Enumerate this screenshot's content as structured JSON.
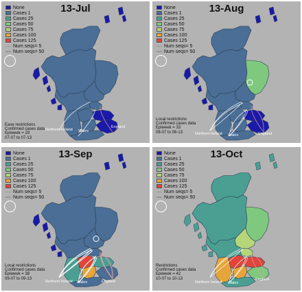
{
  "legend": {
    "items": [
      {
        "label": "None",
        "color": "#1a1aa8"
      },
      {
        "label": "Cases 1",
        "color": "#4a6e95"
      },
      {
        "label": "Cases 25",
        "color": "#4a9f92"
      },
      {
        "label": "Cases 50",
        "color": "#7fc97f"
      },
      {
        "label": "Cases 75",
        "color": "#b6d67a"
      },
      {
        "label": "Cases 100",
        "color": "#e6a53a"
      },
      {
        "label": "Cases 125",
        "color": "#e0443a"
      }
    ],
    "seq_small": "Num seqs= 5",
    "seq_large": "Num seqs= 50"
  },
  "places": {
    "ni": "Northern Ireland",
    "wales": "Wales",
    "england": "England"
  },
  "panels": [
    {
      "title": "13-Jul",
      "info": [
        "Ease restrictions",
        "Confirmed cases data",
        "Epiweek = 29",
        "07-07 to 07-13"
      ],
      "regions": {
        "main": "#4a6e95",
        "north": "#4a6e95",
        "ne": "#4a6e95",
        "east": "#4a6e95",
        "fife": "#4a6e95",
        "lothian": "#1a1aa8",
        "glasgow": "#4a6e95",
        "lanark": "#4a6e95",
        "ayr": "#4a6e95",
        "borders": "#1a1aa8",
        "dg": "#4a6e95",
        "islands": "#1a1aa8"
      }
    },
    {
      "title": "13-Aug",
      "info": [
        "Local restrictions",
        "Confirmed cases data",
        "Epiweek = 33",
        "08-07 to 08-13"
      ],
      "regions": {
        "main": "#4a6e95",
        "north": "#4a6e95",
        "ne": "#7fc97f",
        "east": "#4a6e95",
        "fife": "#4a6e95",
        "lothian": "#1a1aa8",
        "glasgow": "#4a6e95",
        "lanark": "#4a6e95",
        "ayr": "#4a6e95",
        "borders": "#1a1aa8",
        "dg": "#4a6e95",
        "islands": "#1a1aa8"
      }
    },
    {
      "title": "13-Sep",
      "info": [
        "Local restrictions",
        "Confirmed cases data",
        "Epiweek = 38",
        "09-07 to 09-13"
      ],
      "regions": {
        "main": "#4a6e95",
        "north": "#4a6e95",
        "ne": "#4a6e95",
        "east": "#4a6e95",
        "fife": "#4a6e95",
        "lothian": "#4a9f92",
        "glasgow": "#e0443a",
        "lanark": "#e6a53a",
        "ayr": "#4a9f92",
        "borders": "#4a6e95",
        "dg": "#4a6e95",
        "islands": "#1a1aa8"
      }
    },
    {
      "title": "13-Oct",
      "info": [
        "Restrictions",
        "Confirmed cases data",
        "Epiweek = 42",
        "10-07 to 10-13"
      ],
      "regions": {
        "main": "#4a9f92",
        "north": "#4a9f92",
        "ne": "#7fc97f",
        "east": "#b6d67a",
        "fife": "#b6d67a",
        "lothian": "#e0443a",
        "glasgow": "#e0443a",
        "lanark": "#e6a53a",
        "ayr": "#e6a53a",
        "borders": "#7fc97f",
        "dg": "#4a9f92",
        "islands": "#4a9f92"
      }
    }
  ]
}
